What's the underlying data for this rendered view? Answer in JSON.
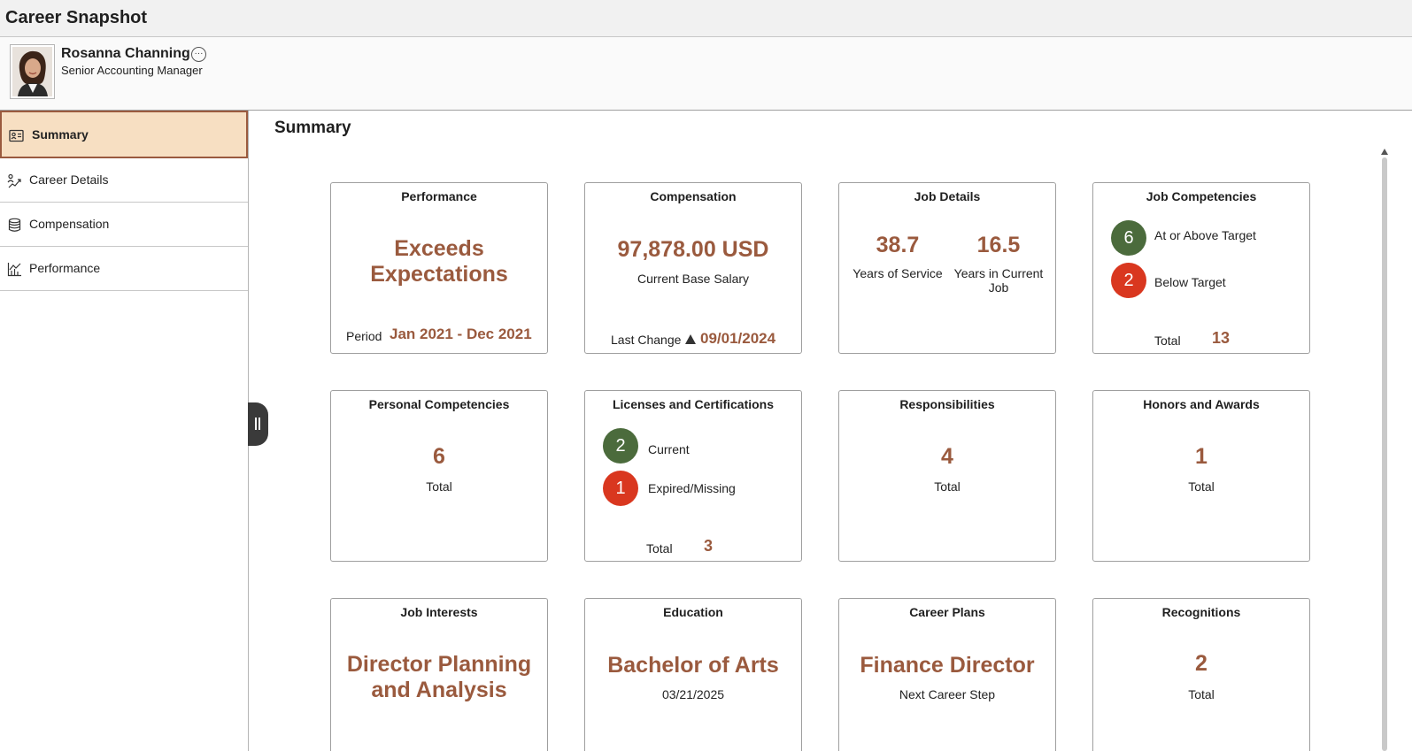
{
  "header": {
    "title": "Career Snapshot"
  },
  "person": {
    "name": "Rosanna Channing",
    "job_title": "Senior Accounting Manager",
    "more_icon": "···"
  },
  "sidebar": {
    "items": [
      {
        "label": "Summary",
        "icon": "id-card-icon",
        "active": true
      },
      {
        "label": "Career Details",
        "icon": "career-path-icon"
      },
      {
        "label": "Compensation",
        "icon": "database-icon"
      },
      {
        "label": "Performance",
        "icon": "chart-icon"
      }
    ]
  },
  "main": {
    "title": "Summary"
  },
  "tiles": {
    "performance": {
      "title": "Performance",
      "rating": "Exceeds Expectations",
      "period_label": "Period",
      "period_value": "Jan 2021 - Dec 2021"
    },
    "compensation": {
      "title": "Compensation",
      "amount": "97,878.00 USD",
      "amount_label": "Current Base Salary",
      "last_change_label": "Last Change",
      "last_change_value": "09/01/2024"
    },
    "job_details": {
      "title": "Job Details",
      "years_service": "38.7",
      "years_service_label": "Years of Service",
      "years_job": "16.5",
      "years_job_label": "Years in Current Job"
    },
    "job_competencies": {
      "title": "Job Competencies",
      "above_count": "6",
      "above_label": "At or Above Target",
      "below_count": "2",
      "below_label": "Below Target",
      "total_label": "Total",
      "total_value": "13"
    },
    "personal_competencies": {
      "title": "Personal Competencies",
      "value": "6",
      "label": "Total"
    },
    "licenses": {
      "title": "Licenses and Certifications",
      "current_count": "2",
      "current_label": "Current",
      "expired_count": "1",
      "expired_label": "Expired/Missing",
      "total_label": "Total",
      "total_value": "3"
    },
    "responsibilities": {
      "title": "Responsibilities",
      "value": "4",
      "label": "Total"
    },
    "honors": {
      "title": "Honors and Awards",
      "value": "1",
      "label": "Total"
    },
    "job_interests": {
      "title": "Job Interests",
      "value": "Director Planning and Analysis"
    },
    "education": {
      "title": "Education",
      "value": "Bachelor of Arts",
      "date": "03/21/2025"
    },
    "career_plans": {
      "title": "Career Plans",
      "value": "Finance Director",
      "label": "Next Career Step"
    },
    "recognitions": {
      "title": "Recognitions",
      "value": "2",
      "label": "Total"
    }
  },
  "colors": {
    "accent": "#9a5a3e",
    "active_bg": "#f7dfc2",
    "green": "#4b6b3c",
    "red": "#d9371f"
  }
}
